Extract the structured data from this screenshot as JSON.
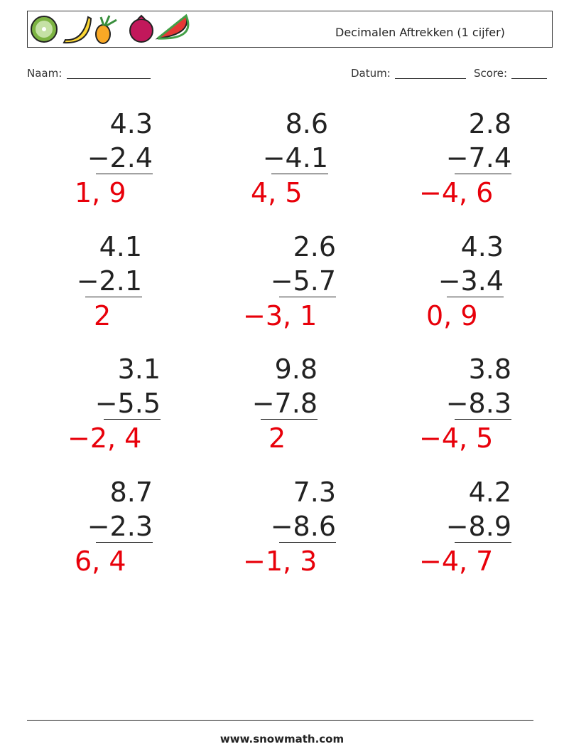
{
  "header": {
    "title": "Decimalen Aftrekken (1 cijfer)"
  },
  "fields": {
    "name": "Naam:",
    "date": "Datum:",
    "score": "Score:"
  },
  "problems": [
    {
      "top": "4.3",
      "bottom": "−2.4",
      "answer": "1, 9"
    },
    {
      "top": "8.6",
      "bottom": "−4.1",
      "answer": "4, 5"
    },
    {
      "top": "2.8",
      "bottom": "−7.4",
      "answer": "−4, 6"
    },
    {
      "top": "4.1",
      "bottom": "−2.1",
      "answer": "2"
    },
    {
      "top": "2.6",
      "bottom": "−5.7",
      "answer": "−3, 1"
    },
    {
      "top": "4.3",
      "bottom": "−3.4",
      "answer": "0, 9"
    },
    {
      "top": "3.1",
      "bottom": "−5.5",
      "answer": "−2, 4"
    },
    {
      "top": "9.8",
      "bottom": "−7.8",
      "answer": "2"
    },
    {
      "top": "3.8",
      "bottom": "−8.3",
      "answer": "−4, 5"
    },
    {
      "top": "8.7",
      "bottom": "−2.3",
      "answer": "6, 4"
    },
    {
      "top": "7.3",
      "bottom": "−8.6",
      "answer": "−1, 3"
    },
    {
      "top": "4.2",
      "bottom": "−8.9",
      "answer": "−4, 7"
    }
  ],
  "footer": {
    "site": "www.snowmath.com"
  }
}
